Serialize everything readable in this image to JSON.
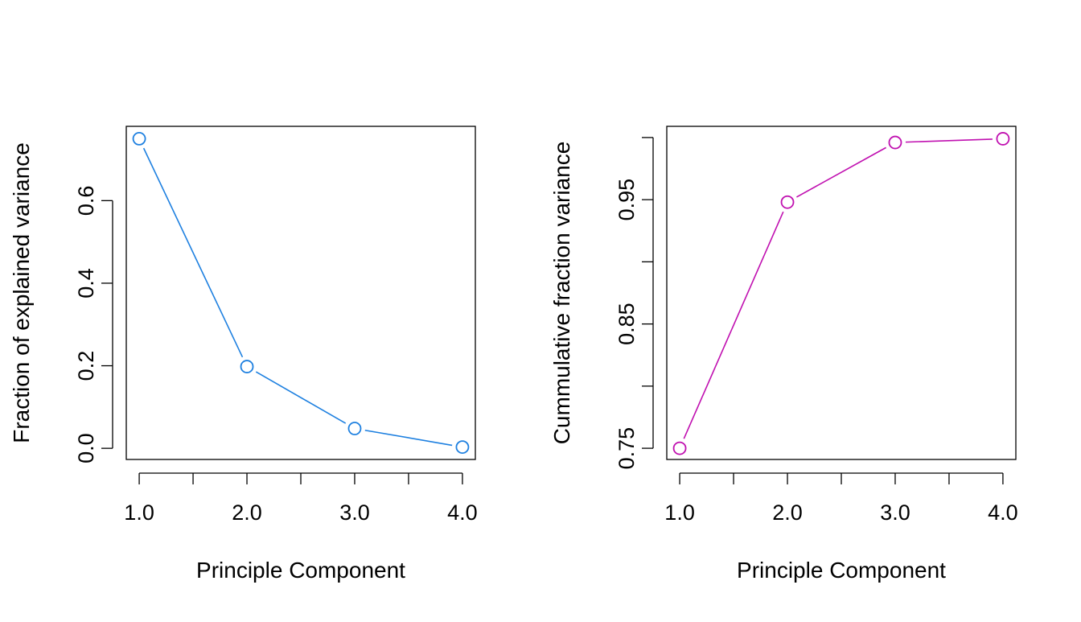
{
  "chart_data": [
    {
      "type": "line",
      "title": "",
      "xlabel": "Principle Component",
      "ylabel": "Fraction of explained variance",
      "x": [
        1,
        2,
        3,
        4
      ],
      "series": [
        {
          "values": [
            0.75,
            0.198,
            0.048,
            0.003
          ]
        }
      ],
      "xlim": [
        0.88,
        4.12
      ],
      "ylim": [
        -0.027,
        0.78
      ],
      "xticks": [
        1,
        1.5,
        2,
        2.5,
        3,
        3.5,
        4
      ],
      "xtick_labels": [
        "1.0",
        "",
        "2.0",
        "",
        "3.0",
        "",
        "4.0"
      ],
      "yticks": [
        0,
        0.2,
        0.4,
        0.6
      ],
      "ytick_labels": [
        "0.0",
        "0.2",
        "0.4",
        "0.6"
      ],
      "color": "#1e80e0",
      "marker": "open-circle",
      "grid": false,
      "legend": "none"
    },
    {
      "type": "line",
      "title": "",
      "xlabel": "Principle Component",
      "ylabel": "Cummulative fraction variance",
      "x": [
        1,
        2,
        3,
        4
      ],
      "series": [
        {
          "values": [
            0.75,
            0.948,
            0.996,
            0.999
          ]
        }
      ],
      "xlim": [
        0.88,
        4.12
      ],
      "ylim": [
        0.741,
        1.009
      ],
      "xticks": [
        1,
        1.5,
        2,
        2.5,
        3,
        3.5,
        4
      ],
      "xtick_labels": [
        "1.0",
        "",
        "2.0",
        "",
        "3.0",
        "",
        "4.0"
      ],
      "yticks": [
        0.75,
        0.8,
        0.85,
        0.9,
        0.95,
        1.0
      ],
      "ytick_labels": [
        "0.75",
        "",
        "0.85",
        "",
        "0.95",
        ""
      ],
      "color": "#c010b0",
      "marker": "open-circle",
      "grid": false,
      "legend": "none"
    }
  ]
}
